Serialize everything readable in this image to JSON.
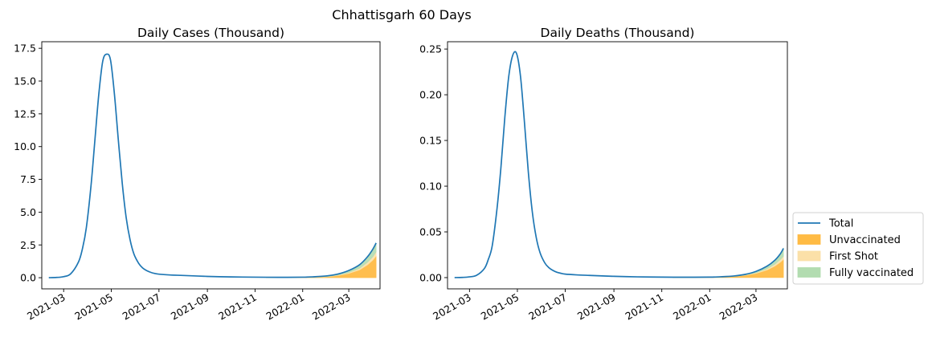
{
  "suptitle": "Chhattisgarh 60 Days",
  "legend": {
    "location": "right of second chart",
    "items": [
      {
        "label": "Total",
        "kind": "line",
        "color": "#1f77b4"
      },
      {
        "label": "Unvaccinated",
        "kind": "area",
        "color": "#ffbb44"
      },
      {
        "label": "First Shot",
        "kind": "area",
        "color": "#fbe0a8"
      },
      {
        "label": "Fully vaccinated",
        "kind": "area",
        "color": "#b2dcb0"
      }
    ]
  },
  "chart_data": [
    {
      "type": "area",
      "title": "Daily Cases (Thousand)",
      "xlabel": "",
      "ylabel": "",
      "x_range": [
        "2021-02-01",
        "2022-04-10"
      ],
      "ylim": [
        -0.85,
        18.0
      ],
      "x_ticks": [
        "2021-03",
        "2021-05",
        "2021-07",
        "2021-09",
        "2021-11",
        "2022-01",
        "2022-03"
      ],
      "y_ticks": [
        "0.0",
        "2.5",
        "5.0",
        "7.5",
        "10.0",
        "12.5",
        "15.0",
        "17.5"
      ],
      "grid": false,
      "series": [
        {
          "name": "Total",
          "x": [
            "2021-02-10",
            "2021-02-20",
            "2021-03-01",
            "2021-03-10",
            "2021-03-20",
            "2021-03-25",
            "2021-03-30",
            "2021-04-05",
            "2021-04-10",
            "2021-04-15",
            "2021-04-20",
            "2021-04-25",
            "2021-04-30",
            "2021-05-05",
            "2021-05-10",
            "2021-05-15",
            "2021-05-20",
            "2021-05-25",
            "2021-05-30",
            "2021-06-05",
            "2021-06-10",
            "2021-06-15",
            "2021-06-20",
            "2021-06-25",
            "2021-07-01",
            "2021-07-15",
            "2021-08-01",
            "2021-09-01",
            "2021-10-01",
            "2021-11-01",
            "2021-12-01",
            "2022-01-01",
            "2022-01-15",
            "2022-02-01",
            "2022-02-15",
            "2022-03-01",
            "2022-03-15",
            "2022-03-25",
            "2022-04-01",
            "2022-04-05"
          ],
          "values": [
            0.0,
            0.02,
            0.08,
            0.3,
            1.2,
            2.2,
            3.8,
            7.0,
            10.5,
            14.0,
            16.5,
            17.05,
            16.6,
            14.0,
            10.5,
            7.2,
            4.6,
            2.9,
            1.8,
            1.1,
            0.75,
            0.55,
            0.42,
            0.33,
            0.27,
            0.21,
            0.17,
            0.1,
            0.06,
            0.04,
            0.03,
            0.04,
            0.07,
            0.14,
            0.28,
            0.55,
            1.0,
            1.6,
            2.2,
            2.65
          ]
        },
        {
          "name": "Unvaccinated",
          "x": [
            "2021-11-15",
            "2021-12-15",
            "2022-01-15",
            "2022-02-01",
            "2022-02-15",
            "2022-03-01",
            "2022-03-15",
            "2022-03-25",
            "2022-04-01",
            "2022-04-05"
          ],
          "values": [
            0.0,
            0.0,
            0.03,
            0.07,
            0.16,
            0.32,
            0.6,
            0.98,
            1.35,
            1.65
          ]
        },
        {
          "name": "First Shot",
          "x": [
            "2021-11-15",
            "2021-12-15",
            "2022-01-15",
            "2022-02-01",
            "2022-02-15",
            "2022-03-01",
            "2022-03-15",
            "2022-03-25",
            "2022-04-01",
            "2022-04-05"
          ],
          "values": [
            0.0,
            0.0,
            0.01,
            0.02,
            0.04,
            0.07,
            0.13,
            0.2,
            0.27,
            0.32
          ]
        },
        {
          "name": "Fully vaccinated",
          "x": [
            "2021-11-15",
            "2021-12-15",
            "2022-01-15",
            "2022-02-01",
            "2022-02-15",
            "2022-03-01",
            "2022-03-15",
            "2022-03-25",
            "2022-04-01",
            "2022-04-05"
          ],
          "values": [
            0.0,
            0.0,
            0.01,
            0.02,
            0.05,
            0.1,
            0.2,
            0.32,
            0.48,
            0.63
          ]
        }
      ]
    },
    {
      "type": "area",
      "title": "Daily Deaths (Thousand)",
      "xlabel": "",
      "ylabel": "",
      "x_range": [
        "2021-02-01",
        "2022-04-10"
      ],
      "ylim": [
        -0.0123,
        0.258
      ],
      "x_ticks": [
        "2021-03",
        "2021-05",
        "2021-07",
        "2021-09",
        "2021-11",
        "2022-01",
        "2022-03"
      ],
      "y_ticks": [
        "0.00",
        "0.05",
        "0.10",
        "0.15",
        "0.20",
        "0.25"
      ],
      "grid": false,
      "series": [
        {
          "name": "Total",
          "x": [
            "2021-02-10",
            "2021-02-20",
            "2021-03-01",
            "2021-03-10",
            "2021-03-20",
            "2021-03-25",
            "2021-03-30",
            "2021-04-05",
            "2021-04-10",
            "2021-04-15",
            "2021-04-20",
            "2021-04-25",
            "2021-04-30",
            "2021-05-05",
            "2021-05-10",
            "2021-05-15",
            "2021-05-20",
            "2021-05-25",
            "2021-05-30",
            "2021-06-05",
            "2021-06-10",
            "2021-06-15",
            "2021-06-20",
            "2021-06-25",
            "2021-07-01",
            "2021-07-15",
            "2021-08-01",
            "2021-09-01",
            "2021-10-01",
            "2021-11-01",
            "2021-12-01",
            "2022-01-01",
            "2022-01-15",
            "2022-02-01",
            "2022-02-15",
            "2022-03-01",
            "2022-03-15",
            "2022-03-25",
            "2022-04-01",
            "2022-04-05"
          ],
          "values": [
            0.0,
            0.0002,
            0.0008,
            0.0025,
            0.01,
            0.02,
            0.035,
            0.075,
            0.12,
            0.175,
            0.22,
            0.243,
            0.245,
            0.22,
            0.17,
            0.115,
            0.072,
            0.044,
            0.027,
            0.016,
            0.011,
            0.008,
            0.006,
            0.0048,
            0.0038,
            0.003,
            0.0024,
            0.0014,
            0.0008,
            0.0005,
            0.0004,
            0.0005,
            0.0009,
            0.0018,
            0.0035,
            0.0068,
            0.0125,
            0.019,
            0.026,
            0.032
          ]
        },
        {
          "name": "Unvaccinated",
          "x": [
            "2021-11-15",
            "2021-12-15",
            "2022-01-15",
            "2022-02-01",
            "2022-02-15",
            "2022-03-01",
            "2022-03-15",
            "2022-03-25",
            "2022-04-01",
            "2022-04-05"
          ],
          "values": [
            0.0,
            0.0,
            0.0006,
            0.0012,
            0.0024,
            0.0045,
            0.0082,
            0.0125,
            0.0168,
            0.0198
          ]
        },
        {
          "name": "First Shot",
          "x": [
            "2021-11-15",
            "2021-12-15",
            "2022-01-15",
            "2022-02-01",
            "2022-02-15",
            "2022-03-01",
            "2022-03-15",
            "2022-03-25",
            "2022-04-01",
            "2022-04-05"
          ],
          "values": [
            0.0,
            0.0,
            0.0001,
            0.0002,
            0.0004,
            0.0008,
            0.0015,
            0.0022,
            0.003,
            0.0036
          ]
        },
        {
          "name": "Fully vaccinated",
          "x": [
            "2021-11-15",
            "2021-12-15",
            "2022-01-15",
            "2022-02-01",
            "2022-02-15",
            "2022-03-01",
            "2022-03-15",
            "2022-03-25",
            "2022-04-01",
            "2022-04-05"
          ],
          "values": [
            0.0,
            0.0,
            0.0002,
            0.0004,
            0.0007,
            0.0015,
            0.0028,
            0.0043,
            0.0062,
            0.0086
          ]
        }
      ]
    }
  ]
}
